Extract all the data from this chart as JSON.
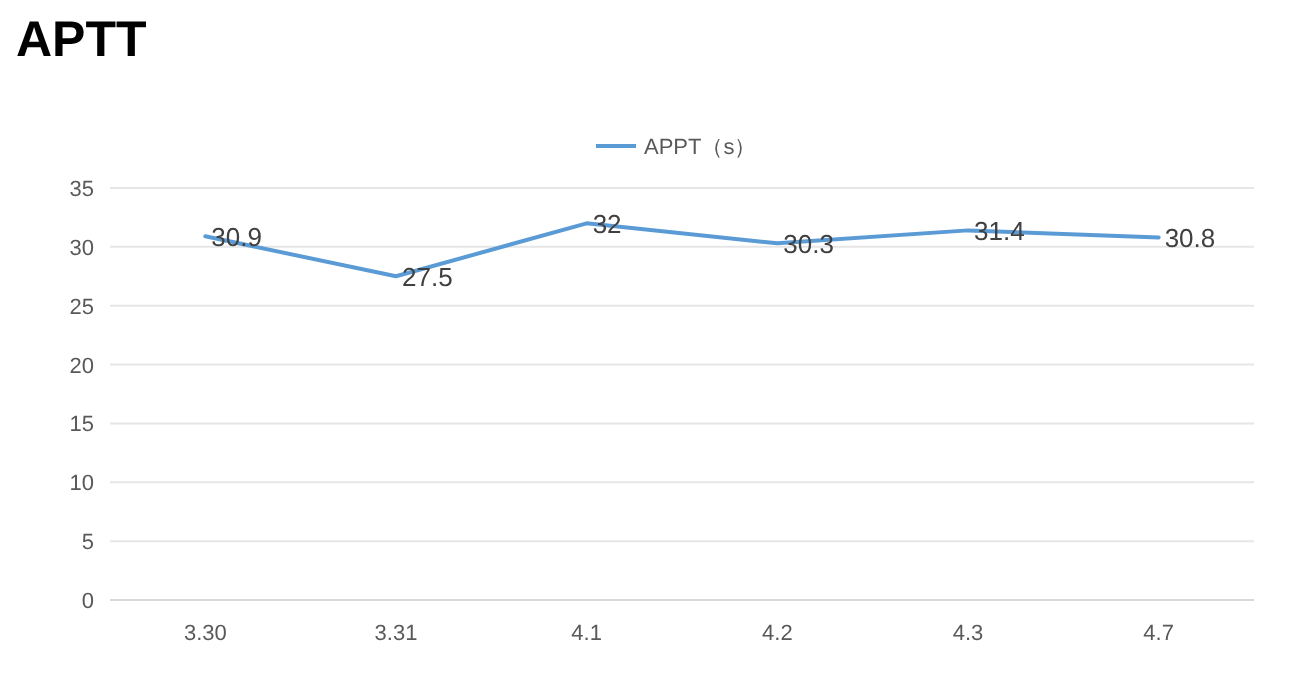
{
  "chart_data": {
    "type": "line",
    "title": "APTT",
    "categories": [
      "3.30",
      "3.31",
      "4.1",
      "4.2",
      "4.3",
      "4.7"
    ],
    "series": [
      {
        "name": "APPT（s）",
        "color": "#5b9bd5",
        "values": [
          30.9,
          27.5,
          32,
          30.3,
          31.4,
          30.8
        ]
      }
    ],
    "ylim": [
      0,
      35
    ],
    "yticks": [
      0,
      5,
      10,
      15,
      20,
      25,
      30,
      35
    ],
    "grid": "y",
    "legend": "top",
    "data_labels": true,
    "marker": "none"
  }
}
